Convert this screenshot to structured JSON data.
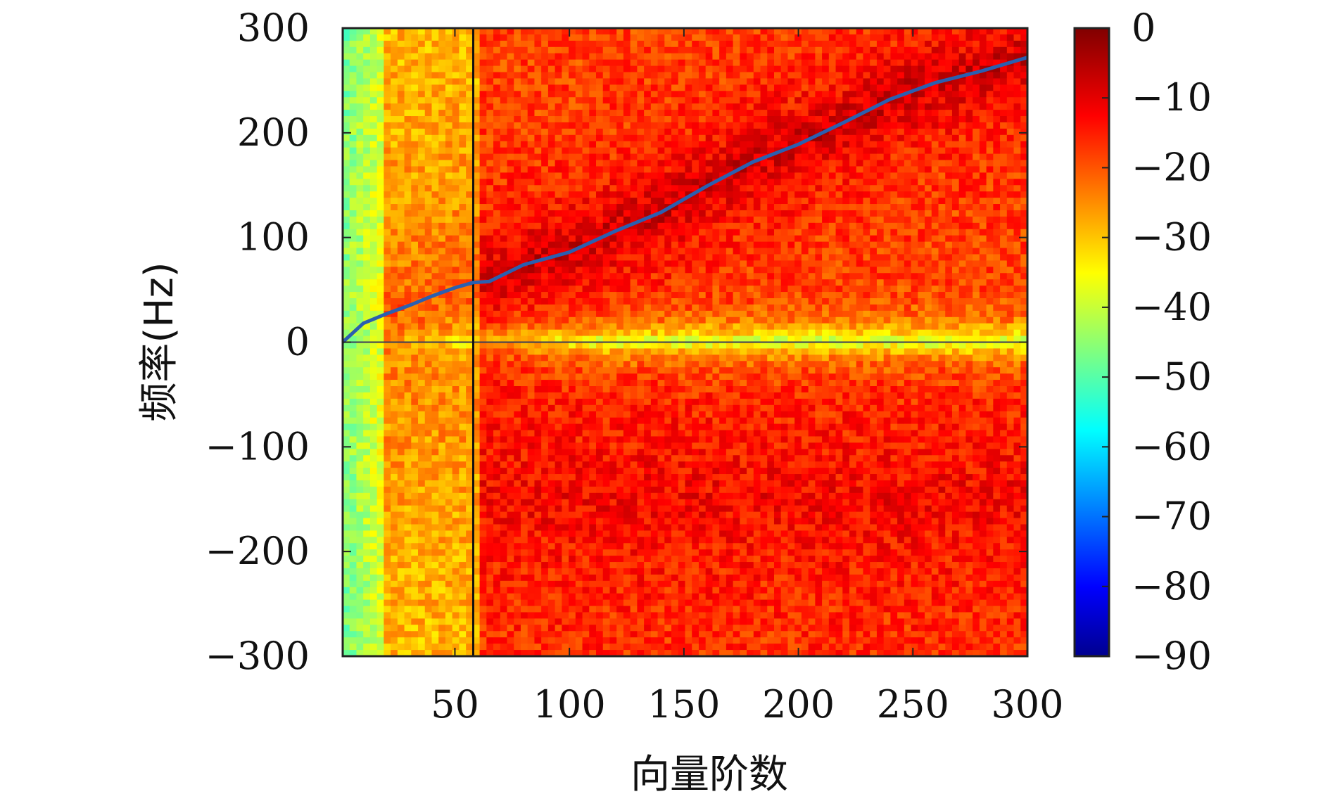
{
  "chart_data": {
    "type": "heatmap",
    "title": "",
    "xlabel": "向量阶数",
    "ylabel": "频率(Hz)",
    "xlim": [
      1,
      300
    ],
    "ylim": [
      -300,
      300
    ],
    "x_ticks": [
      50,
      100,
      150,
      200,
      250,
      300
    ],
    "x_tick_labels": [
      "50",
      "100",
      "150",
      "200",
      "250",
      "300"
    ],
    "y_ticks": [
      300,
      200,
      100,
      0,
      -100,
      -200,
      -300
    ],
    "y_tick_labels": [
      "300",
      "200",
      "100",
      "0",
      "−100",
      "−200",
      "−300"
    ],
    "colorbar": {
      "colormap": "jet",
      "range": [
        -90,
        0
      ],
      "ticks": [
        0,
        -10,
        -20,
        -30,
        -40,
        -50,
        -60,
        -70,
        -80,
        -90
      ],
      "tick_labels": [
        "0",
        "−10",
        "−20",
        "−30",
        "−40",
        "−50",
        "−60",
        "−70",
        "−80",
        "−90"
      ]
    },
    "vertical_line": {
      "x": 58,
      "color": "#111111"
    },
    "horizontal_line": {
      "y": 0,
      "color": "#3a3a5a"
    },
    "series": [
      {
        "type": "line",
        "color": "#2b5fb0",
        "x": [
          1,
          10,
          20,
          30,
          40,
          50,
          58,
          65,
          80,
          100,
          120,
          140,
          160,
          180,
          200,
          220,
          240,
          260,
          280,
          300
        ],
        "y": [
          0,
          18,
          27,
          35,
          44,
          52,
          57,
          58,
          74,
          86,
          106,
          124,
          149,
          172,
          189,
          210,
          232,
          248,
          259,
          272
        ]
      }
    ]
  }
}
